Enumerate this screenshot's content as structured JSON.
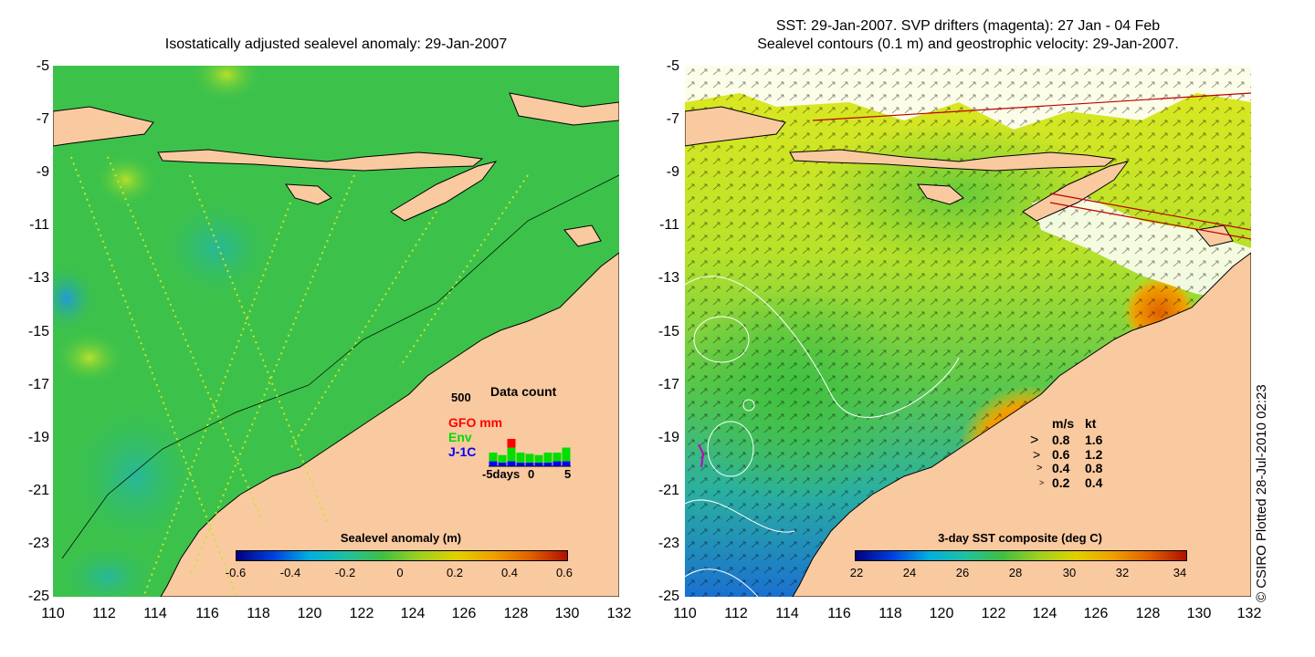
{
  "left_panel": {
    "title": "Isostatically adjusted sealevel anomaly: 29-Jan-2007",
    "y_ticks": [
      "-5",
      "-7",
      "-9",
      "-11",
      "-13",
      "-15",
      "-17",
      "-19",
      "-21",
      "-23",
      "-25"
    ],
    "x_ticks": [
      "110",
      "112",
      "114",
      "116",
      "118",
      "120",
      "122",
      "124",
      "126",
      "128",
      "130",
      "132"
    ],
    "colorbar": {
      "title": "Sealevel anomaly (m)",
      "ticks": [
        "-0.6",
        "-0.4",
        "-0.2",
        "0",
        "0.2",
        "0.4",
        "0.6"
      ]
    },
    "inset": {
      "title": "Data count",
      "max_label": "500",
      "x_labels": [
        "-5days",
        "0",
        "5"
      ],
      "legend": [
        {
          "label": "GFO mm",
          "color": "#ff0000"
        },
        {
          "label": "Env",
          "color": "#00dd00"
        },
        {
          "label": "J-1C",
          "color": "#0000ff"
        }
      ],
      "bars_gfo": [
        0,
        0,
        0.35,
        0,
        0,
        0,
        0,
        0,
        0
      ],
      "bars_env": [
        0.35,
        0.3,
        0.55,
        0.4,
        0.35,
        0.3,
        0.4,
        0.35,
        0.55
      ],
      "bars_j1c": [
        0.2,
        0.15,
        0.2,
        0.15,
        0.15,
        0.15,
        0.15,
        0.2,
        0.2
      ]
    }
  },
  "right_panel": {
    "title_line1": "SST: 29-Jan-2007. SVP drifters (magenta): 27 Jan - 04 Feb",
    "title_line2": "Sealevel contours (0.1 m) and geostrophic velocity: 29-Jan-2007.",
    "y_ticks": [
      "-5",
      "-7",
      "-9",
      "-11",
      "-13",
      "-15",
      "-17",
      "-19",
      "-21",
      "-23",
      "-25"
    ],
    "x_ticks": [
      "110",
      "112",
      "114",
      "116",
      "118",
      "120",
      "122",
      "124",
      "126",
      "128",
      "130",
      "132"
    ],
    "colorbar": {
      "title": "3-day SST composite (deg C)",
      "ticks": [
        "22",
        "24",
        "26",
        "28",
        "30",
        "32",
        "34"
      ]
    },
    "velocity_legend": {
      "header_ms": "m/s",
      "header_kt": "kt",
      "rows": [
        {
          "ms": "0.8",
          "kt": "1.6"
        },
        {
          "ms": "0.6",
          "kt": "1.2"
        },
        {
          "ms": "0.4",
          "kt": "0.8"
        },
        {
          "ms": "0.2",
          "kt": "0.4"
        }
      ]
    }
  },
  "credit": "© CSIRO Plotted 28-Jul-2010 02:23",
  "colors": {
    "land": "#f9c9a0",
    "sea_left": "#3cc24a",
    "sea_right": "#d4e82a"
  }
}
